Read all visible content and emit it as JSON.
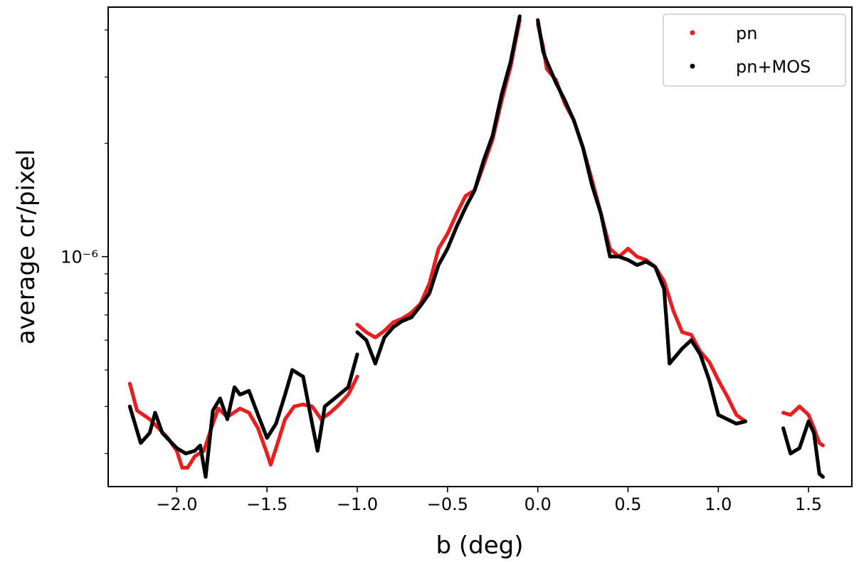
{
  "chart_data": {
    "type": "scatter",
    "xlabel": "b (deg)",
    "ylabel": "average cr/pixel",
    "xlim": [
      -2.38,
      1.74
    ],
    "ylim": [
      2.45e-07,
      4.6e-06
    ],
    "yscale": "log",
    "x_ticks": [
      -2.0,
      -1.5,
      -1.0,
      -0.5,
      0.0,
      0.5,
      1.0,
      1.5
    ],
    "x_tick_labels": [
      "−2.0",
      "−1.5",
      "−1.0",
      "−0.5",
      "0.0",
      "0.5",
      "1.0",
      "1.5"
    ],
    "y_major_ticks": [
      1e-06
    ],
    "y_tick_labels": [
      "10⁻⁶"
    ],
    "y_minor_ticks": [
      3e-07,
      4e-07,
      5e-07,
      6e-07,
      7e-07,
      8e-07,
      9e-07,
      2e-06,
      3e-06,
      4e-06
    ],
    "legend_position": "upper right",
    "series": [
      {
        "name": "pn",
        "color": "#ee1c1c",
        "segments": [
          [
            [
              -2.26,
              4.6e-07
            ],
            [
              -2.22,
              3.9e-07
            ],
            [
              -2.15,
              3.7e-07
            ],
            [
              -2.1,
              3.5e-07
            ],
            [
              -2.05,
              3.3e-07
            ],
            [
              -2.0,
              3.05e-07
            ],
            [
              -1.97,
              2.75e-07
            ],
            [
              -1.94,
              2.75e-07
            ],
            [
              -1.9,
              2.95e-07
            ],
            [
              -1.85,
              3.05e-07
            ],
            [
              -1.8,
              3.6e-07
            ],
            [
              -1.77,
              3.95e-07
            ],
            [
              -1.72,
              3.75e-07
            ],
            [
              -1.65,
              3.95e-07
            ],
            [
              -1.6,
              3.85e-07
            ],
            [
              -1.55,
              3.5e-07
            ],
            [
              -1.5,
              3e-07
            ],
            [
              -1.48,
              2.8e-07
            ],
            [
              -1.45,
              3.1e-07
            ],
            [
              -1.4,
              3.7e-07
            ],
            [
              -1.35,
              4e-07
            ],
            [
              -1.3,
              4.05e-07
            ],
            [
              -1.25,
              4e-07
            ],
            [
              -1.2,
              3.7e-07
            ],
            [
              -1.15,
              3.85e-07
            ],
            [
              -1.1,
              4.05e-07
            ],
            [
              -1.05,
              4.3e-07
            ],
            [
              -1.0,
              4.8e-07
            ]
          ],
          [
            [
              -1.0,
              6.6e-07
            ],
            [
              -0.95,
              6.3e-07
            ],
            [
              -0.9,
              6.1e-07
            ],
            [
              -0.85,
              6.35e-07
            ],
            [
              -0.8,
              6.7e-07
            ],
            [
              -0.75,
              6.85e-07
            ],
            [
              -0.7,
              7.1e-07
            ],
            [
              -0.65,
              7.5e-07
            ],
            [
              -0.6,
              8.5e-07
            ],
            [
              -0.55,
              1.05e-06
            ],
            [
              -0.5,
              1.15e-06
            ],
            [
              -0.45,
              1.3e-06
            ],
            [
              -0.4,
              1.45e-06
            ],
            [
              -0.35,
              1.5e-06
            ],
            [
              -0.3,
              1.75e-06
            ],
            [
              -0.25,
              2.05e-06
            ],
            [
              -0.2,
              2.6e-06
            ],
            [
              -0.15,
              3.2e-06
            ],
            [
              -0.12,
              3.8e-06
            ],
            [
              -0.1,
              4.25e-06
            ]
          ],
          [
            [
              0.0,
              4.15e-06
            ],
            [
              0.03,
              3.6e-06
            ],
            [
              0.05,
              3.15e-06
            ],
            [
              0.1,
              2.95e-06
            ],
            [
              0.15,
              2.55e-06
            ],
            [
              0.2,
              2.3e-06
            ],
            [
              0.25,
              1.95e-06
            ],
            [
              0.3,
              1.6e-06
            ],
            [
              0.35,
              1.3e-06
            ],
            [
              0.4,
              1.05e-06
            ],
            [
              0.45,
              1e-06
            ],
            [
              0.5,
              1.05e-06
            ],
            [
              0.55,
              1e-06
            ],
            [
              0.6,
              9.8e-07
            ],
            [
              0.65,
              9.4e-07
            ],
            [
              0.7,
              8.6e-07
            ],
            [
              0.75,
              7.2e-07
            ],
            [
              0.8,
              6.3e-07
            ],
            [
              0.85,
              6.2e-07
            ],
            [
              0.9,
              5.6e-07
            ],
            [
              0.95,
              5.25e-07
            ],
            [
              1.0,
              4.7e-07
            ],
            [
              1.05,
              4.25e-07
            ],
            [
              1.1,
              3.8e-07
            ],
            [
              1.15,
              3.65e-07
            ]
          ],
          [
            [
              1.36,
              3.85e-07
            ],
            [
              1.4,
              3.8e-07
            ],
            [
              1.45,
              4e-07
            ],
            [
              1.5,
              3.8e-07
            ],
            [
              1.53,
              3.5e-07
            ],
            [
              1.56,
              3.2e-07
            ],
            [
              1.58,
              3.15e-07
            ]
          ]
        ]
      },
      {
        "name": "pn+MOS",
        "color": "#000000",
        "segments": [
          [
            [
              -2.26,
              4e-07
            ],
            [
              -2.2,
              3.2e-07
            ],
            [
              -2.15,
              3.4e-07
            ],
            [
              -2.12,
              3.85e-07
            ],
            [
              -2.08,
              3.4e-07
            ],
            [
              -2.0,
              3.1e-07
            ],
            [
              -1.95,
              3e-07
            ],
            [
              -1.9,
              3.05e-07
            ],
            [
              -1.87,
              3.15e-07
            ],
            [
              -1.84,
              2.6e-07
            ],
            [
              -1.8,
              3.9e-07
            ],
            [
              -1.76,
              4.2e-07
            ],
            [
              -1.72,
              3.7e-07
            ],
            [
              -1.68,
              4.5e-07
            ],
            [
              -1.65,
              4.3e-07
            ],
            [
              -1.6,
              4.4e-07
            ],
            [
              -1.55,
              3.8e-07
            ],
            [
              -1.5,
              3.3e-07
            ],
            [
              -1.45,
              3.6e-07
            ],
            [
              -1.4,
              4.3e-07
            ],
            [
              -1.36,
              5e-07
            ],
            [
              -1.3,
              4.8e-07
            ],
            [
              -1.25,
              3.6e-07
            ],
            [
              -1.22,
              3.05e-07
            ],
            [
              -1.18,
              4e-07
            ],
            [
              -1.1,
              4.3e-07
            ],
            [
              -1.05,
              4.5e-07
            ],
            [
              -1.0,
              5.5e-07
            ]
          ],
          [
            [
              -1.0,
              6.3e-07
            ],
            [
              -0.95,
              6e-07
            ],
            [
              -0.9,
              5.2e-07
            ],
            [
              -0.85,
              6.1e-07
            ],
            [
              -0.8,
              6.5e-07
            ],
            [
              -0.75,
              6.75e-07
            ],
            [
              -0.7,
              6.9e-07
            ],
            [
              -0.65,
              7.4e-07
            ],
            [
              -0.6,
              8e-07
            ],
            [
              -0.55,
              9.5e-07
            ],
            [
              -0.5,
              1.05e-06
            ],
            [
              -0.45,
              1.2e-06
            ],
            [
              -0.4,
              1.35e-06
            ],
            [
              -0.35,
              1.5e-06
            ],
            [
              -0.3,
              1.8e-06
            ],
            [
              -0.25,
              2.1e-06
            ],
            [
              -0.2,
              2.7e-06
            ],
            [
              -0.15,
              3.3e-06
            ],
            [
              -0.12,
              3.9e-06
            ],
            [
              -0.1,
              4.35e-06
            ]
          ],
          [
            [
              0.0,
              4.25e-06
            ],
            [
              0.03,
              3.5e-06
            ],
            [
              0.05,
              3.3e-06
            ],
            [
              0.1,
              2.9e-06
            ],
            [
              0.15,
              2.6e-06
            ],
            [
              0.2,
              2.3e-06
            ],
            [
              0.25,
              1.95e-06
            ],
            [
              0.3,
              1.55e-06
            ],
            [
              0.35,
              1.3e-06
            ],
            [
              0.4,
              1e-06
            ],
            [
              0.45,
              1e-06
            ],
            [
              0.5,
              9.8e-07
            ],
            [
              0.55,
              9.5e-07
            ],
            [
              0.6,
              9.7e-07
            ],
            [
              0.65,
              9.4e-07
            ],
            [
              0.7,
              8.2e-07
            ],
            [
              0.73,
              5.2e-07
            ],
            [
              0.8,
              5.7e-07
            ],
            [
              0.85,
              6e-07
            ],
            [
              0.9,
              5.5e-07
            ],
            [
              0.95,
              4.7e-07
            ],
            [
              1.0,
              3.8e-07
            ],
            [
              1.05,
              3.7e-07
            ],
            [
              1.1,
              3.6e-07
            ],
            [
              1.15,
              3.65e-07
            ]
          ],
          [
            [
              1.36,
              3.5e-07
            ],
            [
              1.4,
              3e-07
            ],
            [
              1.45,
              3.1e-07
            ],
            [
              1.5,
              3.65e-07
            ],
            [
              1.53,
              3.4e-07
            ],
            [
              1.56,
              2.65e-07
            ],
            [
              1.58,
              2.6e-07
            ]
          ]
        ]
      }
    ]
  }
}
